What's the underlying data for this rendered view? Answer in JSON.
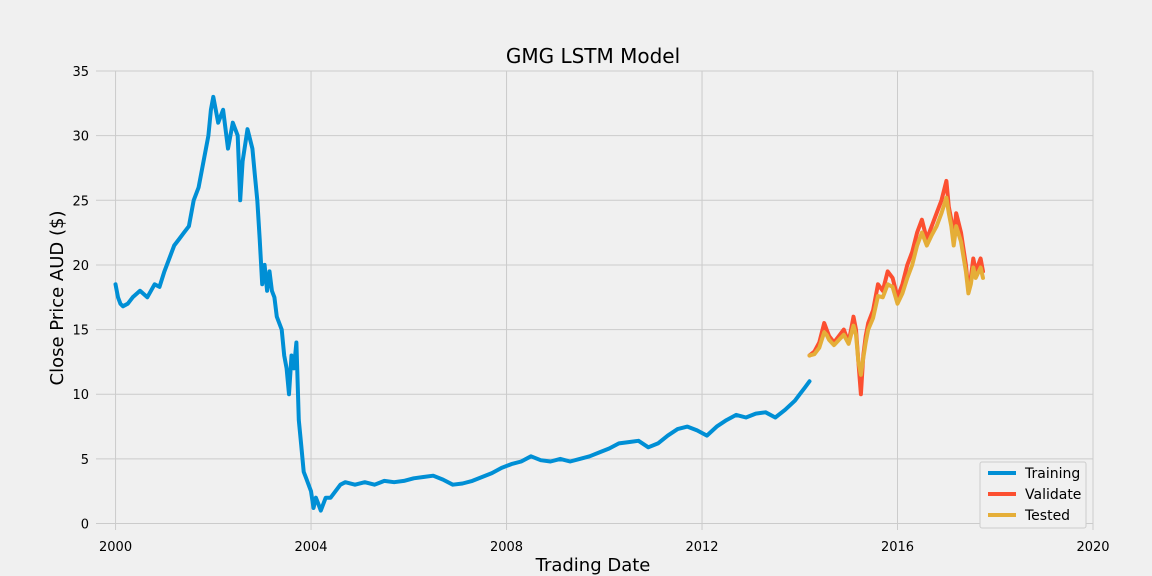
{
  "chart_data": {
    "type": "line",
    "title": "GMG LSTM Model",
    "xlabel": "Trading Date",
    "ylabel": "Close Price AUD ($)",
    "xlim": [
      1999.6,
      2020.0
    ],
    "ylim": [
      -0.5,
      35
    ],
    "xticks": [
      2000,
      2004,
      2008,
      2012,
      2016,
      2020
    ],
    "xtick_labels": [
      "2000",
      "2004",
      "2008",
      "2012",
      "2016",
      "2020"
    ],
    "yticks": [
      0,
      5,
      10,
      15,
      20,
      25,
      30,
      35
    ],
    "ytick_labels": [
      "0",
      "5",
      "10",
      "15",
      "20",
      "25",
      "30",
      "35"
    ],
    "grid": true,
    "legend_position": "lower-right",
    "series": [
      {
        "name": "Training",
        "color": "#008fd5",
        "x": [
          2000.0,
          2000.05,
          2000.1,
          2000.15,
          2000.25,
          2000.35,
          2000.5,
          2000.65,
          2000.8,
          2000.9,
          2001.0,
          2001.1,
          2001.2,
          2001.3,
          2001.4,
          2001.5,
          2001.6,
          2001.7,
          2001.8,
          2001.9,
          2001.95,
          2002.0,
          2002.1,
          2002.2,
          2002.3,
          2002.4,
          2002.5,
          2002.55,
          2002.6,
          2002.7,
          2002.8,
          2002.85,
          2002.9,
          2002.95,
          2003.0,
          2003.05,
          2003.1,
          2003.15,
          2003.2,
          2003.25,
          2003.3,
          2003.4,
          2003.45,
          2003.5,
          2003.55,
          2003.6,
          2003.65,
          2003.7,
          2003.75,
          2003.8,
          2003.85,
          2003.9,
          2004.0,
          2004.05,
          2004.1,
          2004.15,
          2004.2,
          2004.3,
          2004.4,
          2004.5,
          2004.6,
          2004.7,
          2004.9,
          2005.1,
          2005.3,
          2005.5,
          2005.7,
          2005.9,
          2006.1,
          2006.3,
          2006.5,
          2006.7,
          2006.9,
          2007.1,
          2007.3,
          2007.5,
          2007.7,
          2007.9,
          2008.1,
          2008.3,
          2008.5,
          2008.7,
          2008.9,
          2009.1,
          2009.3,
          2009.5,
          2009.7,
          2009.9,
          2010.1,
          2010.3,
          2010.5,
          2010.7,
          2010.9,
          2011.1,
          2011.3,
          2011.5,
          2011.7,
          2011.9,
          2012.1,
          2012.3,
          2012.5,
          2012.7,
          2012.9,
          2013.1,
          2013.3,
          2013.5,
          2013.7,
          2013.9,
          2014.0,
          2014.1,
          2014.2
        ],
        "y": [
          18.5,
          17.5,
          17.0,
          16.8,
          17.0,
          17.5,
          18.0,
          17.5,
          18.5,
          18.3,
          19.5,
          20.5,
          21.5,
          22.0,
          22.5,
          23.0,
          25.0,
          26.0,
          28.0,
          30.0,
          32.0,
          33.0,
          31.0,
          32.0,
          29.0,
          31.0,
          30.0,
          25.0,
          28.0,
          30.5,
          29.0,
          27.0,
          25.0,
          22.0,
          18.5,
          20.0,
          18.0,
          19.5,
          18.0,
          17.5,
          16.0,
          15.0,
          13.0,
          12.0,
          10.0,
          13.0,
          12.0,
          14.0,
          8.0,
          6.0,
          4.0,
          3.5,
          2.5,
          1.2,
          2.0,
          1.5,
          1.0,
          2.0,
          2.0,
          2.5,
          3.0,
          3.2,
          3.0,
          3.2,
          3.0,
          3.3,
          3.2,
          3.3,
          3.5,
          3.6,
          3.7,
          3.4,
          3.0,
          3.1,
          3.3,
          3.6,
          3.9,
          4.3,
          4.6,
          4.8,
          5.2,
          4.9,
          4.8,
          5.0,
          4.8,
          5.0,
          5.2,
          5.5,
          5.8,
          6.2,
          6.3,
          6.4,
          5.9,
          6.2,
          6.8,
          7.3,
          7.5,
          7.2,
          6.8,
          7.5,
          8.0,
          8.4,
          8.2,
          8.5,
          8.6,
          8.2,
          8.8,
          9.5,
          10.0,
          10.5,
          11.0
        ]
      },
      {
        "name": "Validate",
        "color": "#fc4f30",
        "x": [
          2014.2,
          2014.3,
          2014.4,
          2014.5,
          2014.55,
          2014.6,
          2014.7,
          2014.8,
          2014.9,
          2015.0,
          2015.1,
          2015.15,
          2015.2,
          2015.25,
          2015.3,
          2015.35,
          2015.4,
          2015.5,
          2015.6,
          2015.7,
          2015.8,
          2015.9,
          2016.0,
          2016.1,
          2016.2,
          2016.3,
          2016.4,
          2016.5,
          2016.6,
          2016.7,
          2016.8,
          2016.9,
          2017.0,
          2017.05,
          2017.1,
          2017.15,
          2017.2,
          2017.3,
          2017.4,
          2017.45,
          2017.5,
          2017.55,
          2017.6,
          2017.7,
          2017.75
        ],
        "y": [
          13.0,
          13.3,
          14.0,
          15.5,
          15.0,
          14.5,
          14.0,
          14.5,
          15.0,
          14.0,
          16.0,
          15.0,
          12.5,
          10.0,
          13.0,
          14.5,
          15.5,
          16.5,
          18.5,
          18.0,
          19.5,
          19.0,
          17.5,
          18.5,
          20.0,
          21.0,
          22.5,
          23.5,
          22.0,
          23.0,
          24.0,
          25.0,
          26.5,
          24.5,
          23.5,
          22.0,
          24.0,
          22.5,
          20.0,
          18.0,
          19.0,
          20.5,
          19.5,
          20.5,
          19.5
        ]
      },
      {
        "name": "Tested",
        "color": "#e5ae38",
        "x": [
          2014.2,
          2014.3,
          2014.4,
          2014.5,
          2014.55,
          2014.6,
          2014.7,
          2014.8,
          2014.9,
          2015.0,
          2015.1,
          2015.15,
          2015.2,
          2015.25,
          2015.3,
          2015.35,
          2015.4,
          2015.5,
          2015.6,
          2015.7,
          2015.8,
          2015.9,
          2016.0,
          2016.1,
          2016.2,
          2016.3,
          2016.4,
          2016.5,
          2016.6,
          2016.7,
          2016.8,
          2016.9,
          2017.0,
          2017.05,
          2017.1,
          2017.15,
          2017.2,
          2017.3,
          2017.4,
          2017.45,
          2017.5,
          2017.55,
          2017.6,
          2017.7,
          2017.75
        ],
        "y": [
          13.0,
          13.1,
          13.6,
          14.8,
          14.6,
          14.2,
          13.8,
          14.2,
          14.6,
          13.9,
          15.3,
          14.6,
          12.5,
          11.5,
          12.8,
          14.0,
          15.0,
          15.9,
          17.6,
          17.5,
          18.5,
          18.3,
          17.0,
          17.8,
          19.0,
          20.0,
          21.5,
          22.5,
          21.5,
          22.3,
          23.0,
          24.0,
          25.2,
          24.0,
          23.0,
          21.5,
          23.0,
          21.8,
          19.5,
          17.8,
          18.5,
          19.8,
          19.0,
          19.8,
          19.0
        ]
      }
    ]
  }
}
